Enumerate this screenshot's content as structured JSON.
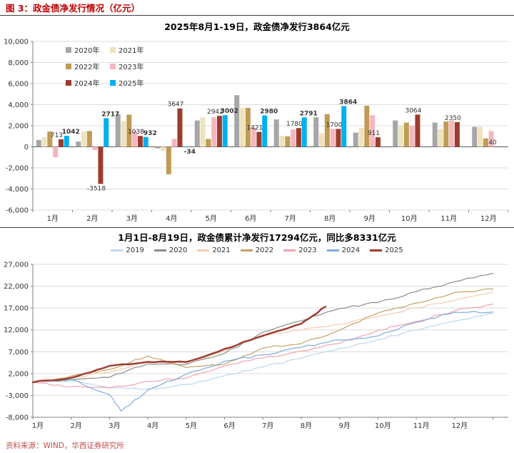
{
  "header": {
    "title": "图 3：政金债净发行情况（亿元）"
  },
  "footer": {
    "source": "资料来源：WIND，华西证券研究所"
  },
  "colors": {
    "accent_red": "#c00000",
    "axis": "#808080",
    "grid": "#dcdcdc",
    "zero_line": "#595959"
  },
  "chart_data": [
    {
      "type": "bar",
      "title": "2025年8月1-19日，政金债净发行3864亿元",
      "categories": [
        "1月",
        "2月",
        "3月",
        "4月",
        "5月",
        "6月",
        "7月",
        "8月",
        "9月",
        "10月",
        "11月",
        "12月"
      ],
      "ylim": [
        -6000,
        10000
      ],
      "ytick_step": 2000,
      "grid": true,
      "legend_position": "upper-left",
      "series": [
        {
          "name": "2020年",
          "color": "#a6a6a6",
          "values": [
            650,
            500,
            3100,
            -150,
            2500,
            4900,
            2600,
            2800,
            1350,
            2500,
            2300,
            1900
          ]
        },
        {
          "name": "2021年",
          "color": "#eee3bd",
          "values": [
            900,
            1450,
            2450,
            -400,
            2800,
            3700,
            1050,
            1300,
            1800,
            2000,
            1700,
            1900
          ]
        },
        {
          "name": "2022年",
          "color": "#bf9b54",
          "values": [
            1450,
            1500,
            3050,
            -2600,
            750,
            3700,
            1000,
            3100,
            3900,
            2300,
            2400,
            800
          ]
        },
        {
          "name": "2023年",
          "color": "#f4b7bf",
          "values": [
            -1000,
            -300,
            1500,
            750,
            2800,
            1800,
            1650,
            1700,
            3000,
            2000,
            2500,
            1500
          ]
        },
        {
          "name": "2024年",
          "color": "#9d3c2d",
          "labels": true,
          "label_color": "#1a1a1a",
          "label_bold": false,
          "values": [
            713,
            -3518,
            1038,
            3647,
            2942,
            1421,
            1780,
            1700,
            911,
            3064,
            2350,
            40
          ]
        },
        {
          "name": "2025年",
          "color": "#00b0f0",
          "labels": true,
          "label_color": "#c00000",
          "label_bold": true,
          "values": [
            1042,
            2717,
            932,
            -34,
            3002,
            2980,
            2791,
            3864,
            null,
            null,
            null,
            null
          ]
        }
      ]
    },
    {
      "type": "line",
      "title": "1月1日-8月19日，政金债累计净发行17294亿元，同比多8331亿元",
      "xtick_labels": [
        "1月",
        "2月",
        "3月",
        "4月",
        "5月",
        "6月",
        "7月",
        "8月",
        "9月",
        "10月",
        "11月",
        "12月"
      ],
      "x_unit": "月（0 = 1月1日，12 = 12月31日）",
      "xlim": [
        0,
        12.4
      ],
      "ylim": [
        -8000,
        27000
      ],
      "ytick_step": 5000,
      "grid": true,
      "legend_position": "top",
      "series": [
        {
          "name": "2019",
          "color": "#bdd7ee",
          "width": 1.2,
          "x": [
            0,
            1,
            2,
            3,
            4,
            5,
            6,
            7,
            8,
            9,
            10,
            11,
            12
          ],
          "y": [
            0,
            400,
            -1200,
            -1500,
            -500,
            1500,
            3500,
            5500,
            7800,
            9800,
            12000,
            14000,
            15800
          ]
        },
        {
          "name": "2020",
          "color": "#8c8c8c",
          "width": 1.2,
          "x": [
            0,
            1,
            2,
            3,
            4,
            5,
            6,
            7,
            8,
            9,
            10,
            11,
            12
          ],
          "y": [
            0,
            650,
            1150,
            4250,
            4100,
            6600,
            11500,
            14100,
            16900,
            18250,
            20750,
            23050,
            24950
          ]
        },
        {
          "name": "2021",
          "color": "#f8cbad",
          "width": 1.2,
          "x": [
            0,
            1,
            2,
            3,
            4,
            5,
            6,
            7,
            8,
            9,
            10,
            11,
            12
          ],
          "y": [
            0,
            900,
            2350,
            4800,
            4400,
            7200,
            10900,
            11950,
            13250,
            15050,
            17050,
            18750,
            20650
          ]
        },
        {
          "name": "2022",
          "color": "#c6a263",
          "width": 1.2,
          "x": [
            0,
            1,
            2,
            3,
            4,
            5,
            6,
            7,
            8,
            9,
            10,
            11,
            12
          ],
          "y": [
            0,
            1450,
            2950,
            6000,
            3400,
            4150,
            7850,
            8850,
            11950,
            15850,
            18150,
            20550,
            21350
          ]
        },
        {
          "name": "2023",
          "color": "#f2a3ad",
          "width": 1.2,
          "x": [
            0,
            1,
            2,
            3,
            4,
            5,
            6,
            7,
            8,
            9,
            10,
            11,
            12
          ],
          "y": [
            0,
            -1000,
            -1300,
            200,
            950,
            3750,
            5550,
            7200,
            8900,
            11900,
            13900,
            16400,
            17900
          ]
        },
        {
          "name": "2024",
          "color": "#7facdf",
          "width": 1.2,
          "x": [
            0,
            1,
            2,
            2.3,
            3,
            4,
            5,
            6,
            7,
            8,
            9,
            10,
            11,
            12
          ],
          "y": [
            0,
            713,
            -2805,
            -6600,
            -1767,
            1880,
            4822,
            6243,
            8023,
            9723,
            10634,
            13698,
            16048,
            16088
          ]
        },
        {
          "name": "2025",
          "color": "#9d3c2d",
          "width": 2.4,
          "x": [
            0,
            1,
            2,
            3,
            4,
            5,
            6,
            7,
            7.63
          ],
          "y": [
            0,
            1042,
            3759,
            4691,
            4657,
            7659,
            10639,
            13430,
            17294
          ]
        }
      ]
    }
  ]
}
